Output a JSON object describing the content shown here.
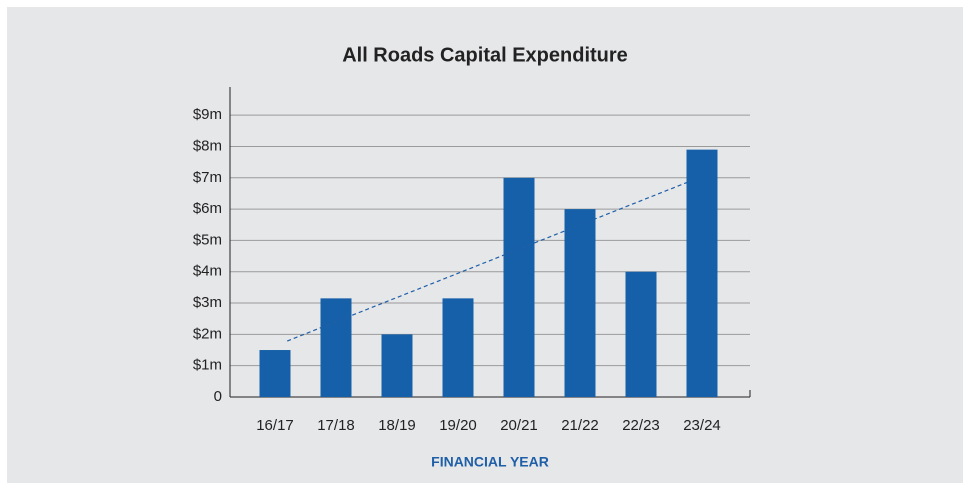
{
  "chart_data": {
    "type": "bar",
    "title": "All Roads Capital Expenditure",
    "x_label": "FINANCIAL YEAR",
    "categories": [
      "16/17",
      "17/18",
      "18/19",
      "19/20",
      "20/21",
      "21/22",
      "22/23",
      "23/24"
    ],
    "values": [
      1.5,
      3.15,
      2,
      3.15,
      7,
      6,
      4,
      7.9
    ],
    "color": "#1560a8",
    "ylim": [
      0,
      9.9
    ],
    "yticks": [
      0,
      {
        "value": 1,
        "label": "$1m"
      },
      {
        "value": 2,
        "label": "$2m"
      },
      {
        "value": 3,
        "label": "$3m"
      },
      {
        "value": 4,
        "label": "$4m"
      },
      {
        "value": 5,
        "label": "$5m"
      },
      {
        "value": 6,
        "label": "$6m"
      },
      {
        "value": 7,
        "label": "$7m"
      },
      {
        "value": 8,
        "label": "$8m"
      },
      {
        "value": 9,
        "label": "$9m"
      }
    ],
    "grid": true,
    "trendline": true
  }
}
